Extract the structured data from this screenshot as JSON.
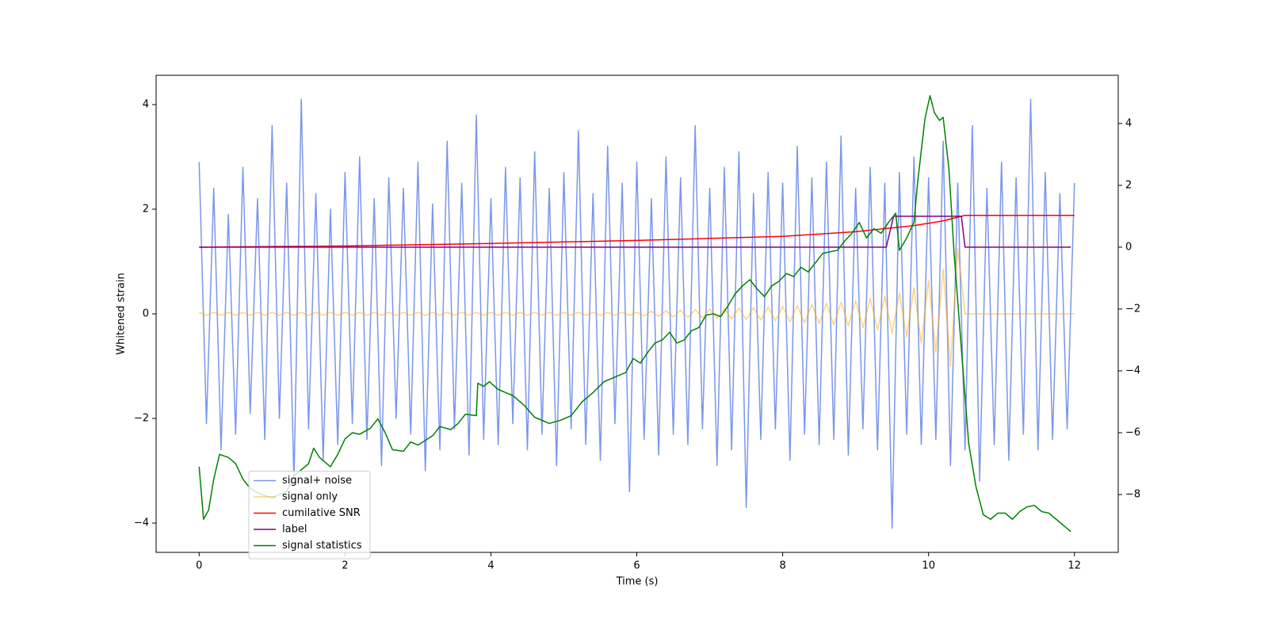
{
  "chart_data": {
    "type": "line",
    "xlabel": "Time (s)",
    "ylabel": "Whitened strain",
    "xlim": [
      -0.59,
      12.6
    ],
    "xticks": [
      0,
      2,
      4,
      6,
      8,
      10,
      12
    ],
    "ylim": [
      -4.56,
      4.56
    ],
    "yticks": [
      {
        "value": -4,
        "label": "−4"
      },
      {
        "value": -2,
        "label": "−2"
      },
      0,
      2,
      4
    ],
    "y2lim": [
      -9.87,
      5.56
    ],
    "y2ticks": [
      {
        "value": -8,
        "label": "−8"
      },
      {
        "value": -6,
        "label": "−6"
      },
      {
        "value": -4,
        "label": "−4"
      },
      {
        "value": -2,
        "label": "−2"
      },
      0,
      2,
      4
    ],
    "legend": "lower left",
    "grid": false,
    "series": [
      {
        "name": "signal+ noise",
        "color": "#4169e1",
        "opacity": 0.7,
        "x": [
          0,
          0.1,
          0.2,
          0.3,
          0.4,
          0.5,
          0.6,
          0.7,
          0.8,
          0.9,
          1,
          1.1,
          1.2,
          1.3,
          1.4,
          1.5,
          1.6,
          1.7,
          1.8,
          1.9,
          2,
          2.1,
          2.2,
          2.3,
          2.4,
          2.5,
          2.6,
          2.7,
          2.8,
          2.9,
          3,
          3.1,
          3.2,
          3.3,
          3.4,
          3.5,
          3.6,
          3.7,
          3.8,
          3.9,
          4,
          4.1,
          4.2,
          4.3,
          4.4,
          4.5,
          4.6,
          4.7,
          4.8,
          4.9,
          5,
          5.1,
          5.2,
          5.3,
          5.4,
          5.5,
          5.6,
          5.7,
          5.8,
          5.9,
          6,
          6.1,
          6.2,
          6.3,
          6.4,
          6.5,
          6.6,
          6.7,
          6.8,
          6.9,
          7,
          7.1,
          7.2,
          7.3,
          7.4,
          7.5,
          7.6,
          7.7,
          7.8,
          7.9,
          8,
          8.1,
          8.2,
          8.3,
          8.4,
          8.5,
          8.6,
          8.7,
          8.8,
          8.9,
          9,
          9.1,
          9.2,
          9.3,
          9.4,
          9.5,
          9.6,
          9.7,
          9.8,
          9.9,
          10,
          10.1,
          10.2,
          10.3,
          10.4,
          10.5,
          10.6,
          10.7,
          10.8,
          10.9,
          11,
          11.1,
          11.2,
          11.3,
          11.4,
          11.5,
          11.6,
          11.7,
          11.8,
          11.9,
          12
        ],
        "values": [
          2.9,
          -2.1,
          2.4,
          -2.6,
          1.9,
          -2.3,
          2.8,
          -1.9,
          2.2,
          -2.4,
          3.6,
          -2.0,
          2.5,
          -3.2,
          4.1,
          -2.2,
          2.3,
          -2.8,
          2.0,
          -2.5,
          2.7,
          -2.1,
          3.0,
          -2.4,
          2.2,
          -2.9,
          2.6,
          -2.0,
          2.4,
          -2.3,
          2.9,
          -3.0,
          2.1,
          -2.6,
          3.3,
          -2.2,
          2.5,
          -2.7,
          3.8,
          -2.4,
          2.2,
          -2.5,
          2.8,
          -2.1,
          2.6,
          -2.6,
          3.1,
          -2.3,
          2.4,
          -2.9,
          2.7,
          -2.2,
          3.5,
          -2.5,
          2.3,
          -2.8,
          3.2,
          -2.1,
          2.5,
          -3.4,
          2.9,
          -2.4,
          2.2,
          -2.7,
          3.0,
          -2.3,
          2.6,
          -2.5,
          3.6,
          -2.2,
          2.4,
          -2.9,
          2.8,
          -2.6,
          3.1,
          -3.7,
          2.3,
          -2.4,
          2.7,
          -2.2,
          2.5,
          -2.8,
          3.2,
          -2.3,
          2.6,
          -2.5,
          2.9,
          -2.4,
          3.4,
          -2.7,
          2.4,
          -2.2,
          2.8,
          -2.6,
          2.5,
          -4.1,
          2.7,
          -2.3,
          3.0,
          -2.5,
          2.6,
          -2.4,
          3.3,
          -2.9,
          2.5,
          -2.6,
          3.6,
          -3.2,
          2.4,
          -2.5,
          2.9,
          -2.8,
          2.6,
          -2.3,
          4.1,
          -2.6,
          2.7,
          -2.4,
          2.3,
          -2.2,
          2.5
        ]
      },
      {
        "name": "signal only",
        "color": "#ffa500",
        "opacity": 0.5,
        "x": [
          0,
          0.1,
          0.2,
          0.3,
          0.4,
          0.5,
          0.6,
          0.7,
          0.8,
          0.9,
          1,
          1.1,
          1.2,
          1.3,
          1.4,
          1.5,
          1.6,
          1.7,
          1.8,
          1.9,
          2,
          2.1,
          2.2,
          2.3,
          2.4,
          2.5,
          2.6,
          2.7,
          2.8,
          2.9,
          3,
          3.1,
          3.2,
          3.3,
          3.4,
          3.5,
          3.6,
          3.7,
          3.8,
          3.9,
          4,
          4.1,
          4.2,
          4.3,
          4.4,
          4.5,
          4.6,
          4.7,
          4.8,
          4.9,
          5,
          5.1,
          5.2,
          5.3,
          5.4,
          5.5,
          5.6,
          5.7,
          5.8,
          5.9,
          6,
          6.1,
          6.2,
          6.3,
          6.4,
          6.5,
          6.6,
          6.7,
          6.8,
          6.9,
          7,
          7.1,
          7.2,
          7.3,
          7.4,
          7.5,
          7.6,
          7.7,
          7.8,
          7.9,
          8,
          8.1,
          8.2,
          8.3,
          8.4,
          8.5,
          8.6,
          8.7,
          8.8,
          8.9,
          9,
          9.1,
          9.2,
          9.3,
          9.4,
          9.5,
          9.6,
          9.7,
          9.8,
          9.9,
          10,
          10.1,
          10.2,
          10.3,
          10.4,
          10.5,
          10.6,
          10.7,
          10.8,
          10.9,
          11,
          11.1,
          11.2,
          11.3,
          11.4,
          11.5,
          11.6,
          11.7,
          11.8,
          11.9,
          12
        ],
        "values": [
          0.03,
          -0.03,
          0.03,
          -0.03,
          0.03,
          -0.03,
          0.03,
          -0.03,
          0.03,
          -0.03,
          0.03,
          -0.03,
          0.03,
          -0.03,
          0.03,
          -0.03,
          0.03,
          -0.03,
          0.03,
          -0.03,
          0.03,
          -0.03,
          0.03,
          -0.03,
          0.03,
          -0.03,
          0.03,
          -0.03,
          0.03,
          -0.03,
          0.03,
          -0.03,
          0.03,
          -0.03,
          0.03,
          -0.03,
          0.03,
          -0.03,
          0.03,
          -0.03,
          0.03,
          -0.03,
          0.03,
          -0.03,
          0.03,
          -0.03,
          0.03,
          -0.03,
          0.03,
          -0.03,
          0.03,
          -0.03,
          0.03,
          -0.03,
          0.03,
          -0.03,
          0.03,
          -0.03,
          0.03,
          -0.03,
          0.03,
          -0.04,
          0.05,
          -0.05,
          0.06,
          -0.06,
          0.07,
          -0.07,
          0.08,
          -0.08,
          0.09,
          -0.09,
          0.1,
          -0.1,
          0.11,
          -0.11,
          0.12,
          -0.12,
          0.13,
          -0.13,
          0.14,
          -0.15,
          0.16,
          -0.17,
          0.18,
          -0.19,
          0.2,
          -0.21,
          0.22,
          -0.23,
          0.25,
          -0.27,
          0.29,
          -0.31,
          0.34,
          -0.37,
          0.4,
          -0.44,
          0.5,
          -0.56,
          0.64,
          -0.74,
          0.86,
          -1.0,
          1.25,
          0,
          0,
          0,
          0,
          0,
          0,
          0,
          0,
          0,
          0,
          0,
          0,
          0,
          0,
          0,
          0
        ]
      },
      {
        "name": "cumilative SNR",
        "color": "#ff0000",
        "axis": "y2",
        "x": [
          0,
          2,
          4,
          6,
          8,
          9,
          9.8,
          10.2,
          10.5,
          12
        ],
        "values": [
          0,
          0.04,
          0.12,
          0.22,
          0.35,
          0.5,
          0.7,
          0.85,
          1.03,
          1.03
        ]
      },
      {
        "name": "label",
        "color": "#800080",
        "axis": "y2",
        "x": [
          0,
          9.42,
          9.52,
          10.45,
          10.5,
          11.95
        ],
        "values": [
          0,
          0,
          1,
          1,
          0,
          0
        ]
      },
      {
        "name": "signal statistics",
        "color": "#008000",
        "axis": "y2",
        "x": [
          0,
          0.06,
          0.13,
          0.2,
          0.28,
          0.4,
          0.5,
          0.6,
          0.7,
          0.85,
          1.0,
          1.2,
          1.3,
          1.5,
          1.57,
          1.65,
          1.8,
          1.9,
          2.0,
          2.1,
          2.2,
          2.35,
          2.45,
          2.55,
          2.65,
          2.8,
          2.9,
          3.0,
          3.2,
          3.3,
          3.45,
          3.55,
          3.65,
          3.8,
          3.82,
          3.9,
          3.98,
          4.1,
          4.3,
          4.45,
          4.6,
          4.8,
          4.95,
          5.1,
          5.25,
          5.4,
          5.55,
          5.7,
          5.85,
          5.95,
          6.05,
          6.15,
          6.25,
          6.35,
          6.45,
          6.55,
          6.65,
          6.75,
          6.85,
          6.95,
          7.05,
          7.15,
          7.25,
          7.35,
          7.45,
          7.55,
          7.65,
          7.75,
          7.85,
          7.95,
          8.05,
          8.15,
          8.25,
          8.35,
          8.45,
          8.55,
          8.65,
          8.75,
          8.85,
          8.95,
          9.05,
          9.15,
          9.25,
          9.35,
          9.45,
          9.55,
          9.6,
          9.7,
          9.8,
          9.85,
          9.95,
          10.02,
          10.08,
          10.15,
          10.2,
          10.28,
          10.35,
          10.45,
          10.55,
          10.65,
          10.75,
          10.85,
          10.95,
          11.05,
          11.15,
          11.25,
          11.35,
          11.45,
          11.55,
          11.65,
          11.75,
          11.85,
          11.95
        ],
        "values": [
          -7.1,
          -8.8,
          -8.5,
          -7.5,
          -6.7,
          -6.8,
          -7.0,
          -7.5,
          -7.8,
          -8.0,
          -8.1,
          -7.9,
          -7.4,
          -7.0,
          -6.5,
          -6.8,
          -7.1,
          -6.7,
          -6.2,
          -6.0,
          -6.05,
          -5.85,
          -5.55,
          -6.0,
          -6.55,
          -6.6,
          -6.3,
          -6.4,
          -6.1,
          -5.8,
          -5.9,
          -5.7,
          -5.4,
          -5.45,
          -4.4,
          -4.5,
          -4.35,
          -4.6,
          -4.8,
          -5.1,
          -5.5,
          -5.7,
          -5.6,
          -5.45,
          -5.0,
          -4.7,
          -4.35,
          -4.2,
          -4.05,
          -3.6,
          -3.75,
          -3.4,
          -3.1,
          -3.0,
          -2.75,
          -3.1,
          -3.0,
          -2.7,
          -2.6,
          -2.2,
          -2.15,
          -2.25,
          -1.9,
          -1.5,
          -1.25,
          -1.05,
          -1.35,
          -1.6,
          -1.25,
          -1.1,
          -0.85,
          -0.95,
          -0.65,
          -0.8,
          -0.5,
          -0.2,
          -0.15,
          -0.1,
          0.2,
          0.45,
          0.8,
          0.3,
          0.6,
          0.45,
          0.8,
          1.1,
          -0.1,
          0.3,
          0.8,
          2.1,
          4.15,
          4.9,
          4.35,
          4.1,
          4.2,
          2.5,
          -0.2,
          -3.3,
          -6.35,
          -7.75,
          -8.65,
          -8.8,
          -8.6,
          -8.6,
          -8.8,
          -8.55,
          -8.4,
          -8.35,
          -8.55,
          -8.6,
          -8.8,
          -9.0,
          -9.2
        ]
      }
    ]
  }
}
